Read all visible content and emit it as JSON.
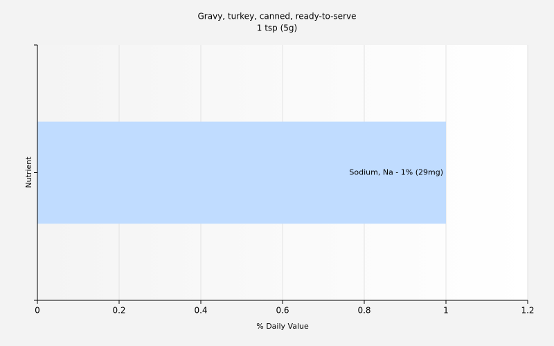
{
  "chart_data": {
    "type": "bar",
    "orientation": "horizontal",
    "title": "Gravy, turkey, canned, ready-to-serve",
    "subtitle": "1 tsp (5g)",
    "x_label": "% Daily Value",
    "y_label": "Nutrient",
    "categories": [
      null
    ],
    "values": [
      1
    ],
    "value_labels": [
      "Sodium, Na - 1% (29mg)"
    ],
    "color": "#c0dcff",
    "xlim": [
      0,
      1.2
    ],
    "xticks": [
      0,
      0.2,
      0.4,
      0.6,
      0.8,
      1,
      1.2
    ],
    "grid": true
  }
}
